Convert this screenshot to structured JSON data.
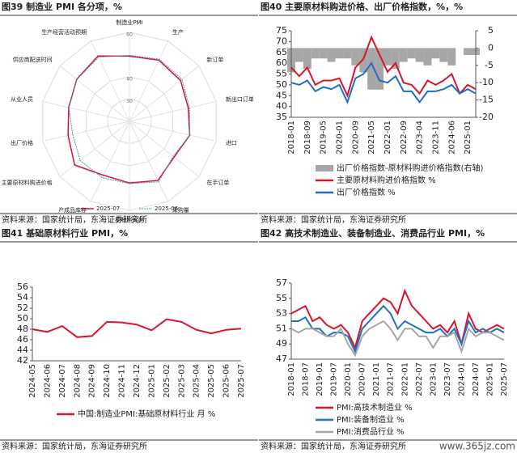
{
  "chart_data": [
    {
      "type": "radar",
      "title": "图39  制造业 PMI 各分项，%",
      "source": "资料来源：国家统计局，东海证券研究所",
      "categories": [
        "制造业PMI",
        "生产",
        "新订单",
        "新出口订单",
        "进口",
        "在手订单",
        "采购量",
        "原材料库存",
        "产成品库存",
        "主要原材料购进价格",
        "出厂价格",
        "从业人员",
        "供应商配送时间",
        "生产经营活动预期"
      ],
      "rlim": [
        20,
        60
      ],
      "rticks": [
        30,
        40,
        60
      ],
      "series": [
        {
          "name": "2025-07",
          "color": "#d9142b",
          "values": [
            49.3,
            50.5,
            49.4,
            47.1,
            47.8,
            45.7,
            49.5,
            47.7,
            46.9,
            51.5,
            48.3,
            48.0,
            50.3,
            52.6
          ]
        },
        {
          "name": "2025-06",
          "color": "#3c9bb0",
          "dash": true,
          "values": [
            49.7,
            51.0,
            50.2,
            47.7,
            47.8,
            45.2,
            50.2,
            48.0,
            48.1,
            48.3,
            46.2,
            47.9,
            50.2,
            52.0
          ]
        }
      ]
    },
    {
      "type": "line",
      "title": "图40  主要原材料购进价格、出厂价格指数，%，%",
      "source": "资料来源：国家统计局，东海证券研究所",
      "categories": [
        "2018-01",
        null,
        "2018-09",
        null,
        "2019-05",
        null,
        "2020-01",
        null,
        "2020-09",
        null,
        "2021-05",
        null,
        "2022-01",
        null,
        "2022-09",
        null,
        "2023-04",
        null,
        "2023-11",
        null,
        "2024-06",
        null,
        "2025-01",
        null
      ],
      "ylim": [
        35,
        75
      ],
      "yticks": [
        35,
        40,
        45,
        50,
        55,
        60,
        65,
        70,
        75
      ],
      "y2lim": [
        -20,
        5
      ],
      "y2ticks": [
        -20,
        -15,
        -10,
        -5,
        0,
        5
      ],
      "series": [
        {
          "name": "出厂价格指数-原材料购进价格指数(右轴)",
          "color": "#a6a6a6",
          "axis": "y2",
          "kind": "bar",
          "values": [
            -7,
            -4,
            -6,
            -3,
            -3,
            -4,
            -3,
            -3,
            -5,
            -7,
            -12,
            -12,
            -5,
            -6,
            -4,
            -3,
            -4,
            -5,
            -3,
            -4,
            -5,
            0,
            -2,
            -2
          ]
        },
        {
          "name": "主要原材料购进价格指数 %",
          "color": "#d9142b",
          "values": [
            58,
            54,
            58,
            50,
            52,
            52,
            53,
            45,
            58,
            62,
            72,
            64,
            56,
            60,
            51,
            50,
            46,
            52,
            50,
            52,
            55,
            46,
            50,
            48
          ]
        },
        {
          "name": "出厂价格指数 %",
          "color": "#1f6fc5",
          "values": [
            51,
            50,
            52,
            47,
            49,
            48,
            50,
            42,
            53,
            55,
            60,
            52,
            51,
            54,
            47,
            47,
            42,
            47,
            47,
            48,
            50,
            46,
            48,
            46
          ]
        }
      ]
    },
    {
      "type": "line",
      "title": "图41  基础原材料行业 PMI，%",
      "source": "资料来源：国家统计局，东海证券研究所",
      "categories": [
        "2024-05",
        "2024-06",
        "2024-07",
        "2024-08",
        "2024-09",
        "2024-10",
        "2024-11",
        "2024-12",
        "2025-01",
        "2025-02",
        "2025-03",
        "2025-04",
        "2025-05",
        "2025-06",
        "2025-07"
      ],
      "ylim": [
        42,
        56
      ],
      "yticks": [
        42,
        44,
        46,
        48,
        50,
        52,
        54,
        56
      ],
      "series": [
        {
          "name": "中国:制造业PMI:基础原材料行业 月 %",
          "color": "#d9142b",
          "values": [
            48.0,
            47.5,
            48.6,
            46.5,
            46.7,
            49.4,
            49.3,
            48.9,
            47.8,
            49.9,
            49.4,
            47.9,
            47.2,
            47.9,
            48.1
          ]
        }
      ]
    },
    {
      "type": "line",
      "title": "图42  高技术制造业、装备制造业、消费品行业 PMI，%",
      "source": "资料来源：国家统计局，东海证券研究所",
      "watermark": "www.365jz.com",
      "categories": [
        "2018-01",
        null,
        "2018-07",
        null,
        "2019-01",
        null,
        "2019-07",
        null,
        "2020-01",
        null,
        "2020-07",
        null,
        "2021-01",
        null,
        "2021-07",
        null,
        "2022-01",
        null,
        "2022-07",
        null,
        "2023-01",
        null,
        "2023-07",
        null,
        "2024-01",
        null,
        "2024-07",
        null,
        "2025-01",
        null,
        "2025-07"
      ],
      "ylim": [
        47,
        57
      ],
      "yticks": [
        47,
        49,
        51,
        53,
        55,
        57
      ],
      "series": [
        {
          "name": "PMI:高技术制造业 %",
          "color": "#d9142b",
          "values": [
            53,
            53.5,
            54,
            52,
            52.5,
            51.5,
            51,
            51.5,
            50.5,
            48.5,
            52,
            53,
            54,
            55,
            54.5,
            53,
            56,
            54,
            53,
            52,
            51,
            51.5,
            50.5,
            52,
            49,
            53,
            51,
            50.5,
            51,
            51.5,
            51
          ]
        },
        {
          "name": "PMI:装备制造业 %",
          "color": "#1f6fc5",
          "values": [
            52,
            52,
            52.5,
            51,
            51,
            50,
            50.5,
            50.5,
            50,
            48,
            51,
            52,
            53,
            54,
            53,
            51,
            52,
            51.5,
            51,
            50.5,
            50.5,
            51,
            50,
            51,
            49,
            52,
            50.5,
            51,
            50.5,
            51,
            50.5
          ]
        },
        {
          "name": "PMI:消费品行业 %",
          "color": "#a6a6a6",
          "values": [
            51,
            50.5,
            51,
            51,
            50.5,
            50,
            50,
            51,
            49,
            47.5,
            50,
            51,
            51.5,
            52,
            51,
            49.5,
            51,
            51,
            50,
            50,
            48.5,
            50,
            50,
            50.5,
            48,
            51,
            50,
            50.5,
            50.5,
            50,
            49.5
          ]
        }
      ]
    }
  ]
}
